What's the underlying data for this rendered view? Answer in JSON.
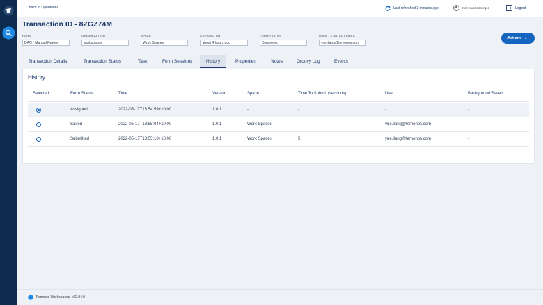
{
  "header": {
    "back": "Back to Operations",
    "refresh": "Last refreshed 3 minutes ago",
    "user": "Ken Munzenberger",
    "logout": "Logout"
  },
  "title": "Transaction ID - 8ZGZ74M",
  "fields": [
    {
      "label": "FORM",
      "value": "DAO - Manual Review"
    },
    {
      "label": "ORGANIZATION",
      "value": "workspaces"
    },
    {
      "label": "SPACE",
      "value": "Work Spaces"
    },
    {
      "label": "CREATED ON",
      "value": "about 4 hours ago"
    },
    {
      "label": "FORM STATUS",
      "value": "Completed"
    },
    {
      "label": "USER / CONTACT EMAIL",
      "value": "yue.liang@temenos.com"
    }
  ],
  "actions": "Actions",
  "tabs": [
    {
      "label": "Transaction Details",
      "active": false
    },
    {
      "label": "Transaction Status",
      "active": false
    },
    {
      "label": "Task",
      "active": false
    },
    {
      "label": "Form Sessions",
      "active": false
    },
    {
      "label": "History",
      "active": true
    },
    {
      "label": "Properties",
      "active": false
    },
    {
      "label": "Notes",
      "active": false
    },
    {
      "label": "Groovy Log",
      "active": false
    },
    {
      "label": "Events",
      "active": false
    }
  ],
  "history": {
    "title": "History",
    "columns": [
      "Selected",
      "Form Status",
      "Time",
      "Version",
      "Space",
      "Time To Submit (seconds)",
      "User",
      "Background Saved"
    ],
    "rows": [
      {
        "selected": true,
        "cells": [
          "Assigned",
          "2022-05-17T13:54:59+10:00",
          "1.0.1",
          "-",
          "-",
          "-",
          "-"
        ]
      },
      {
        "selected": false,
        "cells": [
          "Saved",
          "2022-05-17T13:55:04+10:00",
          "1.0.1",
          "Work Spaces",
          "-",
          "yue.liang@temenos.com",
          "-"
        ]
      },
      {
        "selected": false,
        "cells": [
          "Submitted",
          "2022-05-17T13:55:10+10:00",
          "1.0.1",
          "Work Spaces",
          "5",
          "yue.liang@temenos.com",
          "-"
        ]
      }
    ]
  },
  "footer": "Temenos Workspaces. v22.04.0"
}
